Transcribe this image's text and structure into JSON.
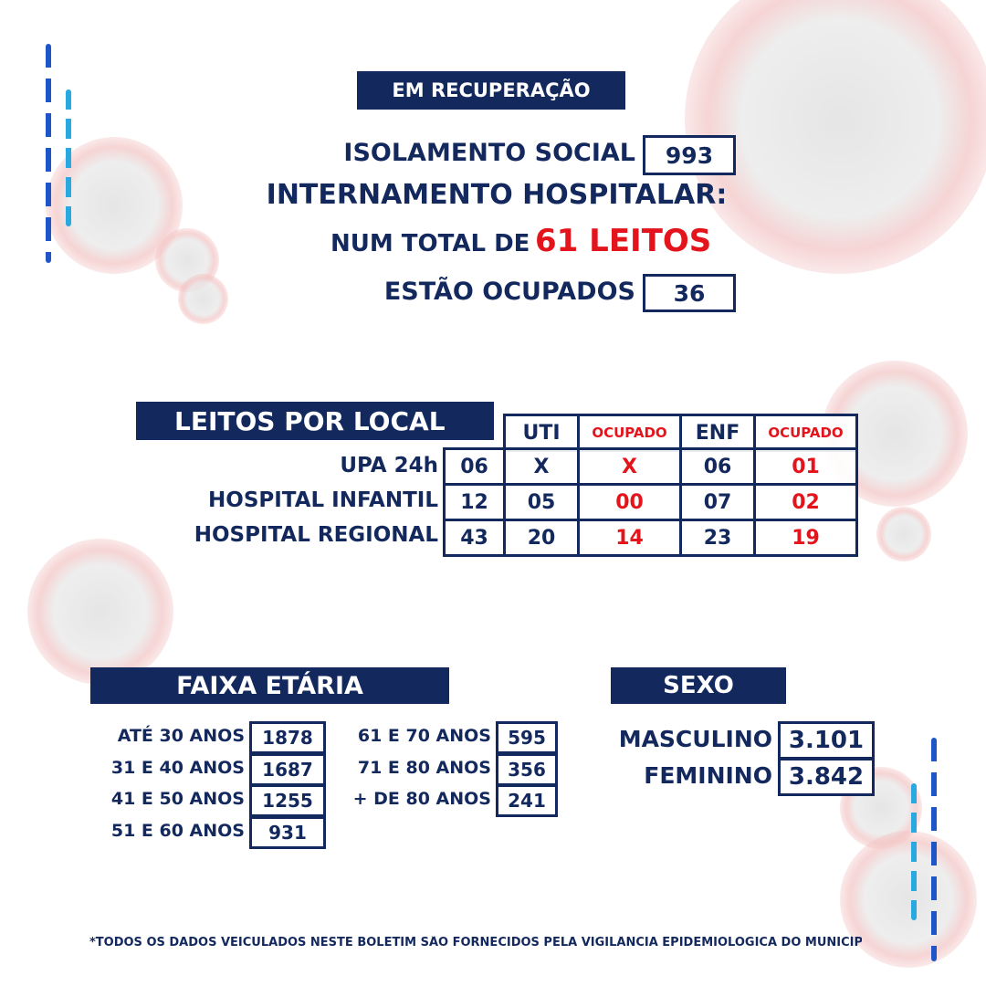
{
  "colors": {
    "navy": "#13295e",
    "red": "#e3141b",
    "blue": "#1e56c8",
    "cyan": "#28a9e0"
  },
  "header": {
    "title": "EM RECUPERAÇÃO"
  },
  "recovery": {
    "isolation_label": "ISOLAMENTO SOCIAL",
    "isolation_value": "993",
    "hospital_label": "INTERNAMENTO HOSPITALAR:",
    "total_prefix": "NUM TOTAL DE",
    "total_value": "61 LEITOS",
    "occupied_label": "ESTÃO OCUPADOS",
    "occupied_value": "36"
  },
  "beds": {
    "title": "LEITOS POR LOCAL",
    "columns": [
      "UTI",
      "OCUPADO",
      "ENF",
      "OCUPADO"
    ],
    "rows": [
      {
        "name": "UPA 24h",
        "total": "06",
        "uti": "X",
        "uti_occ": "X",
        "enf": "06",
        "enf_occ": "01"
      },
      {
        "name": "HOSPITAL INFANTIL",
        "total": "12",
        "uti": "05",
        "uti_occ": "00",
        "enf": "07",
        "enf_occ": "02"
      },
      {
        "name": "HOSPITAL REGIONAL",
        "total": "43",
        "uti": "20",
        "uti_occ": "14",
        "enf": "23",
        "enf_occ": "19"
      }
    ]
  },
  "age": {
    "title": "FAIXA ETÁRIA",
    "left": [
      {
        "label": "ATÉ 30 ANOS",
        "value": "1878"
      },
      {
        "label": "31 E 40 ANOS",
        "value": "1687"
      },
      {
        "label": "41 E 50 ANOS",
        "value": "1255"
      },
      {
        "label": "51 E 60 ANOS",
        "value": "931"
      }
    ],
    "right": [
      {
        "label": "61 E 70 ANOS",
        "value": "595"
      },
      {
        "label": "71 E 80 ANOS",
        "value": "356"
      },
      {
        "label": "+ DE 80 ANOS",
        "value": "241"
      }
    ]
  },
  "sex": {
    "title": "SEXO",
    "items": [
      {
        "label": "MASCULINO",
        "value": "3.101"
      },
      {
        "label": "FEMININO",
        "value": "3.842"
      }
    ]
  },
  "footer": {
    "note": "*TODOS OS DADOS VEICULADOS NESTE BOLETIM SÃO FORNECIDOS PELA VIGILÂNCIA EPIDEMIOLÓGICA DO MUNICÍP"
  }
}
